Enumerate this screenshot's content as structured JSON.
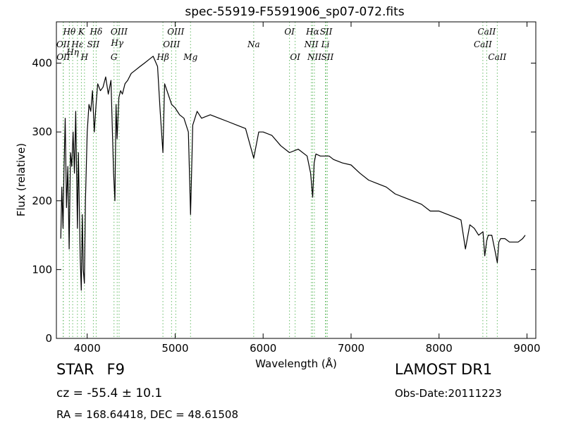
{
  "chart_data": {
    "type": "line",
    "title": "spec-55919-F5591906_sp07-072.fits",
    "xlabel": "Wavelength (Å)",
    "ylabel": "Flux (relative)",
    "xlim": [
      3650,
      9100
    ],
    "ylim": [
      0,
      460
    ],
    "xticks": [
      4000,
      5000,
      6000,
      7000,
      8000,
      9000
    ],
    "yticks": [
      0,
      100,
      200,
      300,
      400
    ],
    "grid": false,
    "legend": "none",
    "line_color": "#000000",
    "marker_color": "#66bb66",
    "series": [
      {
        "x": [
          3700,
          3712,
          3725,
          3737,
          3750,
          3765,
          3780,
          3795,
          3810,
          3825,
          3840,
          3855,
          3870,
          3889,
          3900,
          3920,
          3933,
          3945,
          3955,
          3968,
          3980,
          4000,
          4020,
          4040,
          4060,
          4080,
          4101,
          4120,
          4150,
          4180,
          4210,
          4240,
          4270,
          4300,
          4315,
          4328,
          4340,
          4360,
          4380,
          4400,
          4430,
          4460,
          4500,
          4550,
          4600,
          4650,
          4700,
          4750,
          4800,
          4830,
          4861,
          4880,
          4920,
          4960,
          5000,
          5050,
          5100,
          5150,
          5175,
          5200,
          5250,
          5300,
          5400,
          5500,
          5600,
          5700,
          5800,
          5893,
          5950,
          6000,
          6100,
          6200,
          6300,
          6400,
          6500,
          6540,
          6563,
          6580,
          6600,
          6650,
          6700,
          6750,
          6800,
          6900,
          7000,
          7100,
          7200,
          7300,
          7400,
          7500,
          7600,
          7700,
          7800,
          7900,
          8000,
          8100,
          8200,
          8250,
          8300,
          8350,
          8400,
          8450,
          8500,
          8520,
          8542,
          8560,
          8600,
          8640,
          8662,
          8680,
          8700,
          8750,
          8800,
          8850,
          8900,
          8950,
          8980
        ],
        "y": [
          145,
          220,
          160,
          250,
          320,
          190,
          250,
          130,
          270,
          250,
          300,
          240,
          330,
          160,
          270,
          120,
          70,
          180,
          100,
          80,
          200,
          300,
          340,
          330,
          360,
          300,
          340,
          370,
          360,
          365,
          380,
          355,
          375,
          240,
          200,
          340,
          290,
          350,
          360,
          355,
          370,
          375,
          385,
          390,
          395,
          400,
          405,
          410,
          395,
          330,
          270,
          370,
          355,
          340,
          335,
          325,
          320,
          300,
          180,
          310,
          330,
          320,
          325,
          320,
          315,
          310,
          305,
          262,
          300,
          300,
          295,
          280,
          270,
          275,
          265,
          240,
          205,
          255,
          268,
          265,
          265,
          265,
          260,
          255,
          252,
          240,
          230,
          225,
          220,
          210,
          205,
          200,
          195,
          185,
          185,
          180,
          175,
          172,
          130,
          165,
          160,
          150,
          155,
          120,
          142,
          150,
          150,
          125,
          110,
          140,
          145,
          145,
          140,
          140,
          140,
          145,
          150
        ]
      }
    ],
    "spectral_lines": [
      {
        "label": "Hθ",
        "x": 3797,
        "row": 1
      },
      {
        "label": "OII",
        "x": 3727,
        "row": 2
      },
      {
        "label": "OII",
        "x": 3729,
        "row": 3
      },
      {
        "label": "Hη",
        "x": 3835,
        "row": 2.6
      },
      {
        "label": "Hε",
        "x": 3889,
        "row": 2
      },
      {
        "label": "SII",
        "x": 4070,
        "row": 2
      },
      {
        "label": "K",
        "x": 3934,
        "row": 1
      },
      {
        "label": "H",
        "x": 3969,
        "row": 3
      },
      {
        "label": "Hδ",
        "x": 4102,
        "row": 1
      },
      {
        "label": "OIII",
        "x": 4363,
        "row": 1
      },
      {
        "label": "Hγ",
        "x": 4341,
        "row": 1.9
      },
      {
        "label": "G",
        "x": 4305,
        "row": 3
      },
      {
        "label": "OIII",
        "x": 5007,
        "row": 1
      },
      {
        "label": "Hβ",
        "x": 4861,
        "row": 3
      },
      {
        "label": "OIII",
        "x": 4959,
        "row": 2
      },
      {
        "label": "Mg",
        "x": 5175,
        "row": 3
      },
      {
        "label": "Na",
        "x": 5893,
        "row": 2
      },
      {
        "label": "OI",
        "x": 6300,
        "row": 1
      },
      {
        "label": "OI",
        "x": 6364,
        "row": 3
      },
      {
        "label": "Hα",
        "x": 6563,
        "row": 1
      },
      {
        "label": "SII",
        "x": 6716,
        "row": 1
      },
      {
        "label": "NII",
        "x": 6548,
        "row": 2
      },
      {
        "label": "Li",
        "x": 6708,
        "row": 2
      },
      {
        "label": "NII",
        "x": 6583,
        "row": 3
      },
      {
        "label": "SII",
        "x": 6731,
        "row": 3
      },
      {
        "label": "CaII",
        "x": 8542,
        "row": 1
      },
      {
        "label": "CaII",
        "x": 8498,
        "row": 2
      },
      {
        "label": "CaII",
        "x": 8662,
        "row": 3
      }
    ]
  },
  "footer": {
    "object_class": "STAR",
    "subclass": "F9",
    "redshift": "cz = -55.4 ± 10.1",
    "coords": "RA = 168.64418, DEC = 48.61508",
    "survey": "LAMOST DR1",
    "obs_date": "Obs-Date:20111223"
  }
}
